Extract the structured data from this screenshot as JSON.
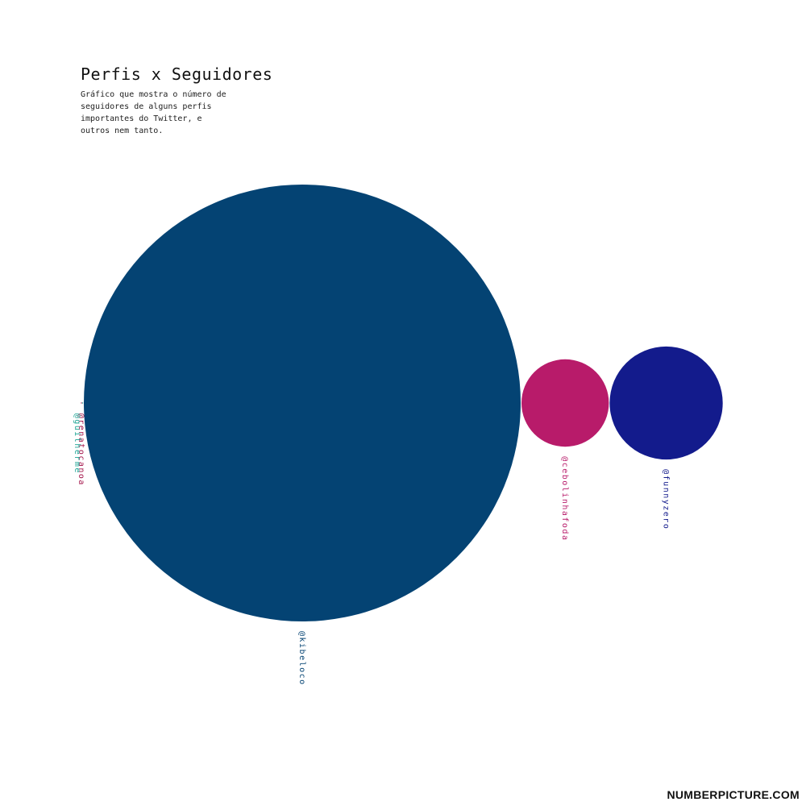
{
  "chart_data": {
    "type": "bubble",
    "title": "Perfis x Seguidores",
    "subtitle": "Gráfico que mostra o número de seguidores de alguns perfis importantes do Twitter, e outros nem tanto.",
    "series": [
      {
        "name": "@kibeloco",
        "value": 1000000,
        "color": "#044373"
      },
      {
        "name": "@cebolinhafoda",
        "value": 40000,
        "color": "#b81b6a"
      },
      {
        "name": "@funnyzero",
        "value": 67000,
        "color": "#131b8c"
      },
      {
        "name": "@renatocanoa",
        "value": 2,
        "color": "#a3144a"
      },
      {
        "name": "@guilherme",
        "value": 1,
        "color": "#1aa393"
      }
    ]
  },
  "brand": "NUMBERPICTURE.COM"
}
